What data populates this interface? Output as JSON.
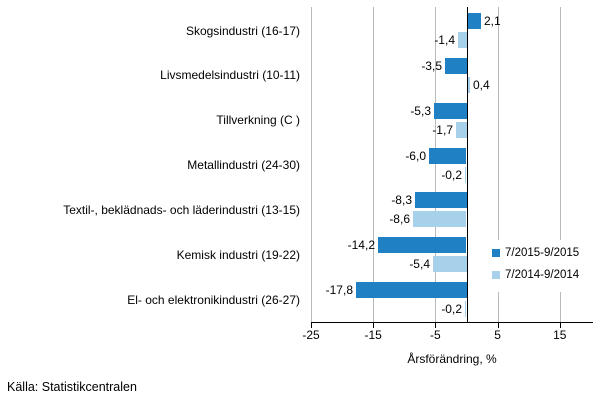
{
  "source_note": "Källa: Statistikcentralen",
  "chart_data": {
    "type": "bar",
    "orientation": "horizontal",
    "title": "",
    "xlabel": "Årsförändring, %",
    "categories": [
      "Skogsindustri (16-17)",
      "Livsmedelsindustri (10-11)",
      "Tillverkning (C )",
      "Metallindustri (24-30)",
      "Textil-, beklädnads- och läderindustri (13-15)",
      "Kemisk industri (19-22)",
      "El- och elektronikindustri (26-27)"
    ],
    "series": [
      {
        "name": "7/2015-9/2015",
        "color": "#1f80c4",
        "values": [
          2.1,
          -3.5,
          -5.3,
          -6.0,
          -8.3,
          -14.2,
          -17.8
        ],
        "value_labels": [
          "2,1",
          "-3,5",
          "-5,3",
          "-6,0",
          "-8,3",
          "-14,2",
          "-17,8"
        ]
      },
      {
        "name": "7/2014-9/2014",
        "color": "#a7d0ea",
        "values": [
          -1.4,
          0.4,
          -1.7,
          -0.2,
          -8.6,
          -5.4,
          -0.2
        ],
        "value_labels": [
          "-1,4",
          "0,4",
          "-1,7",
          "-0,2",
          "-8,6",
          "-5,4",
          "-0,2"
        ]
      }
    ],
    "x_ticks": [
      -25,
      -15,
      -5,
      5,
      15
    ],
    "x_tick_labels": [
      "-25",
      "-15",
      "-5",
      "5",
      "15"
    ],
    "xlim": [
      -25,
      20.3
    ],
    "grid": "vertical-gridlines-on",
    "legend_position": "right-inside",
    "gridline_color": "#b9b9b9",
    "axis_color": "#000000",
    "text_color": "#000000",
    "background_color": "#ffffff"
  }
}
